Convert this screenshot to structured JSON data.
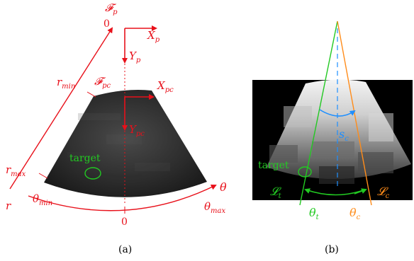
{
  "panel_a": {
    "caption": "(a)",
    "frame_probe_symbol": "𝓕",
    "frame_probe_sub": "p",
    "frame_pc_symbol": "𝓕",
    "frame_pc_sub": "pc",
    "x_p": "X",
    "x_p_sub": "p",
    "y_p": "Y",
    "y_p_sub": "p",
    "x_pc": "X",
    "x_pc_sub": "pc",
    "y_pc": "Y",
    "y_pc_sub": "pc",
    "r_min": "r",
    "r_min_sub": "min",
    "r_max": "r",
    "r_max_sub": "max",
    "r_axis": "r",
    "origin_zero": "0",
    "bottom_zero": "0",
    "theta": "θ",
    "theta_min": "θ",
    "theta_min_sub": "min",
    "theta_max": "θ",
    "theta_max_sub": "max",
    "target_label": "target",
    "accent_color": "#e8101a",
    "target_color": "#22c922"
  },
  "panel_b": {
    "caption": "(b)",
    "target_label": "target",
    "s_c": "s",
    "s_c_sub": "c",
    "L_t": "𝓛",
    "L_t_sub": "t",
    "L_c": "𝓛",
    "L_c_sub": "c",
    "theta_t": "θ",
    "theta_t_sub": "t",
    "theta_c": "θ",
    "theta_c_sub": "c",
    "green_color": "#22c922",
    "orange_color": "#ff8c1a",
    "blue_color": "#1e8fff"
  }
}
